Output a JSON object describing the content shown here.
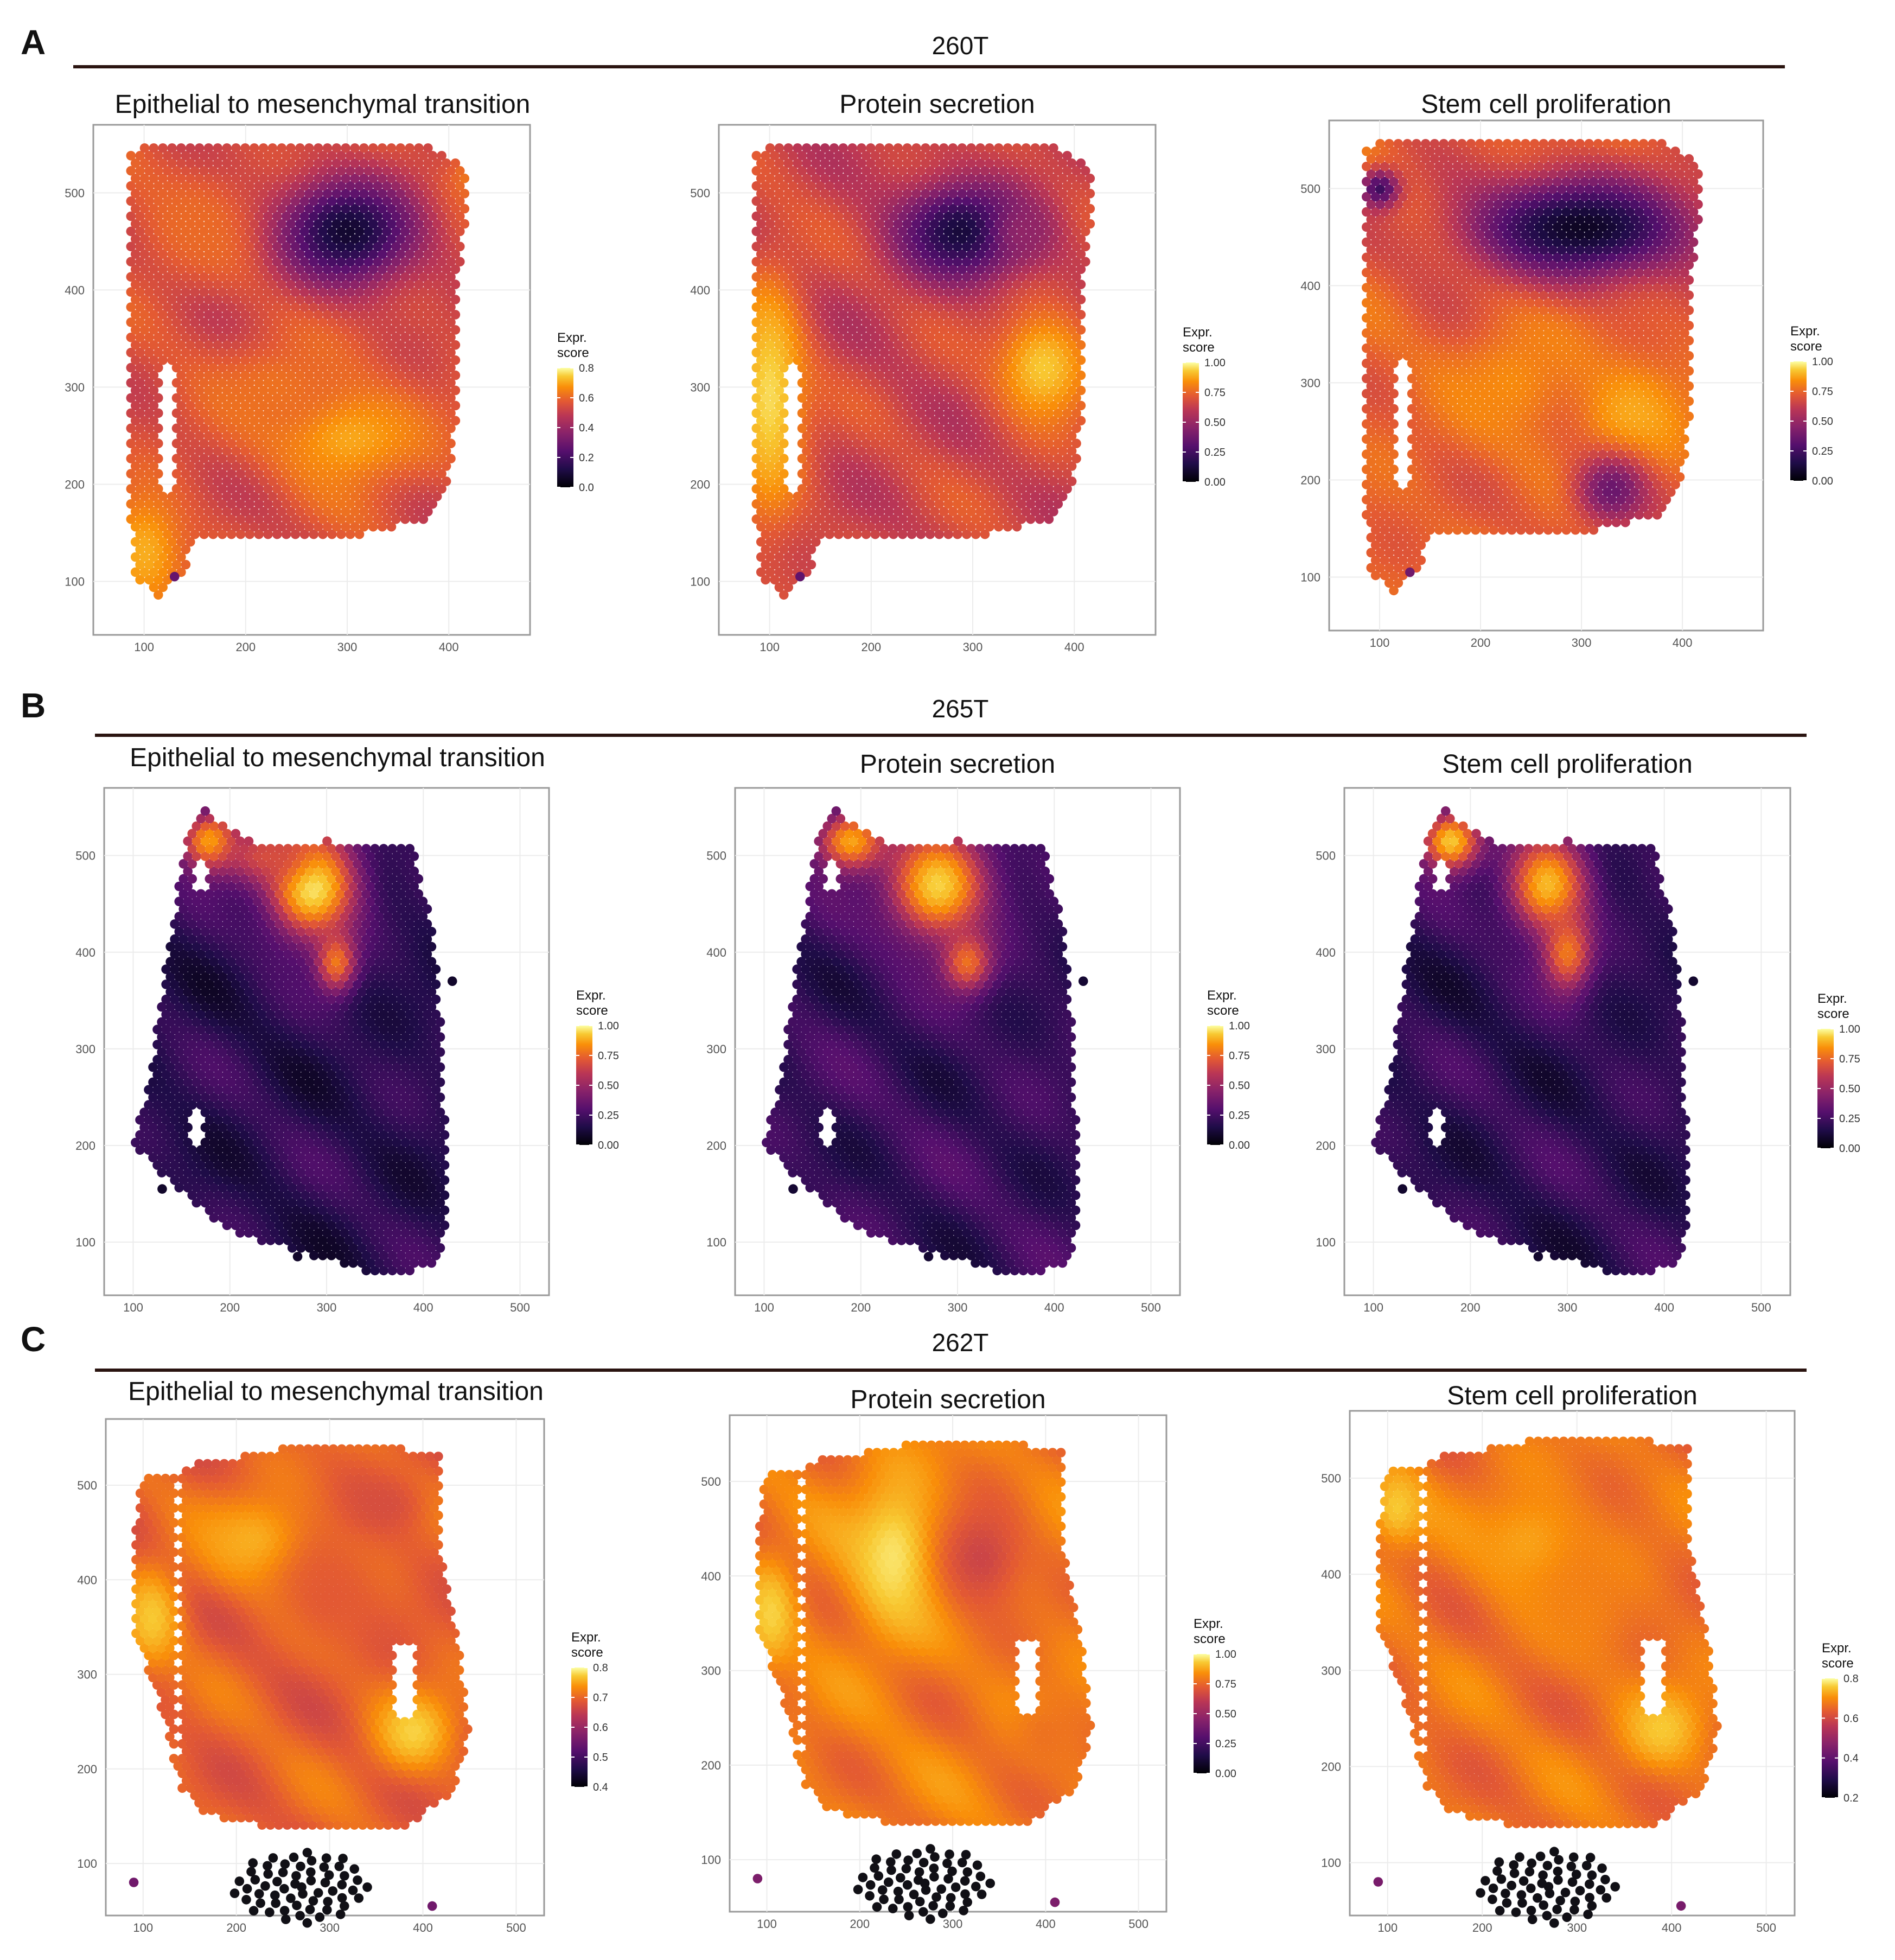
{
  "figure": {
    "rows": [
      {
        "panel_letter": "A",
        "sample": "260T",
        "plots": [
          {
            "title": "Epithelial to mesenchymal transition",
            "legend_title": [
              "Expr.",
              "score"
            ],
            "legend_ticks": [
              "0.0",
              "0.2",
              "0.4",
              "0.6",
              "0.8"
            ],
            "scale_max": 0.8
          },
          {
            "title": "Protein secretion",
            "legend_title": [
              "Expr.",
              "score"
            ],
            "legend_ticks": [
              "0.00",
              "0.25",
              "0.50",
              "0.75",
              "1.00"
            ],
            "scale_max": 1.0
          },
          {
            "title": "Stem cell proliferation",
            "legend_title": [
              "Expr.",
              "score"
            ],
            "legend_ticks": [
              "0.00",
              "0.25",
              "0.50",
              "0.75",
              "1.00"
            ],
            "scale_max": 1.0
          }
        ]
      },
      {
        "panel_letter": "B",
        "sample": "265T",
        "plots": [
          {
            "title": "Epithelial to mesenchymal transition",
            "legend_title": [
              "Expr.",
              "score"
            ],
            "legend_ticks": [
              "0.00",
              "0.25",
              "0.50",
              "0.75",
              "1.00"
            ],
            "scale_max": 1.0
          },
          {
            "title": "Protein secretion",
            "legend_title": [
              "Expr.",
              "score"
            ],
            "legend_ticks": [
              "0.00",
              "0.25",
              "0.50",
              "0.75",
              "1.00"
            ],
            "scale_max": 1.0
          },
          {
            "title": "Stem cell proliferation",
            "legend_title": [
              "Expr.",
              "score"
            ],
            "legend_ticks": [
              "0.00",
              "0.25",
              "0.50",
              "0.75",
              "1.00"
            ],
            "scale_max": 1.0
          }
        ]
      },
      {
        "panel_letter": "C",
        "sample": "262T",
        "plots": [
          {
            "title": "Epithelial to mesenchymal transition",
            "legend_title": [
              "Expr.",
              "score"
            ],
            "legend_ticks": [
              "0.4",
              "0.5",
              "0.6",
              "0.7",
              "0.8"
            ],
            "scale_max": 0.8
          },
          {
            "title": "Protein secretion",
            "legend_title": [
              "Expr.",
              "score"
            ],
            "legend_ticks": [
              "0.00",
              "0.25",
              "0.50",
              "0.75",
              "1.00"
            ],
            "scale_max": 1.0
          },
          {
            "title": "Stem cell proliferation",
            "legend_title": [
              "Expr.",
              "score"
            ],
            "legend_ticks": [
              "0.2",
              "0.4",
              "0.6",
              "0.8"
            ],
            "scale_max": 0.8
          }
        ]
      }
    ]
  },
  "chart_data": [
    {
      "type": "scatter",
      "sample": "260T",
      "xlim": [
        50,
        480
      ],
      "ylim": [
        45,
        570
      ],
      "x_ticks": [
        100,
        200,
        300,
        400
      ],
      "y_ticks": [
        100,
        200,
        300,
        400,
        500
      ],
      "color_scale": "inferno",
      "legend_title": "Expr. score",
      "panels": [
        "Epithelial to mesenchymal transition",
        "Protein secretion",
        "Stem cell proliferation"
      ],
      "tissue_outline": [
        [
          85,
          545
        ],
        [
          120,
          550
        ],
        [
          380,
          548
        ],
        [
          415,
          530
        ],
        [
          420,
          480
        ],
        [
          410,
          420
        ],
        [
          410,
          300
        ],
        [
          400,
          200
        ],
        [
          380,
          165
        ],
        [
          300,
          145
        ],
        [
          150,
          145
        ],
        [
          140,
          110
        ],
        [
          110,
          80
        ],
        [
          90,
          110
        ],
        [
          85,
          200
        ],
        [
          85,
          545
        ]
      ],
      "gaps": [
        {
          "center": [
            125,
            260
          ],
          "size": [
            14,
            130
          ]
        }
      ],
      "isolated_spots": [
        [
          130,
          105
        ]
      ],
      "hotspots": [
        [
          [
            300,
            460,
            70,
            55,
            0.08
          ],
          [
            300,
            250,
            70,
            50,
            0.82
          ],
          [
            230,
            300,
            70,
            50,
            0.68
          ],
          [
            430,
            520,
            30,
            30,
            0.72
          ],
          [
            100,
            130,
            40,
            60,
            0.82
          ],
          [
            150,
            470,
            60,
            60,
            0.66
          ]
        ],
        [
          [
            290,
            460,
            65,
            50,
            0.1
          ],
          [
            100,
            290,
            35,
            120,
            0.92
          ],
          [
            370,
            320,
            45,
            55,
            0.88
          ],
          [
            350,
            460,
            30,
            30,
            0.4
          ]
        ],
        [
          [
            300,
            460,
            120,
            55,
            0.06
          ],
          [
            350,
            260,
            50,
            60,
            0.82
          ],
          [
            330,
            190,
            40,
            40,
            0.3
          ],
          [
            100,
            500,
            20,
            20,
            0.2
          ],
          [
            230,
            300,
            60,
            60,
            0.74
          ]
        ]
      ],
      "base_values": [
        0.58,
        0.55,
        0.64
      ]
    },
    {
      "type": "scatter",
      "sample": "265T",
      "xlim": [
        70,
        530
      ],
      "ylim": [
        45,
        570
      ],
      "x_ticks": [
        100,
        200,
        300,
        400,
        500
      ],
      "y_ticks": [
        100,
        200,
        300,
        400,
        500
      ],
      "color_scale": "inferno",
      "legend_title": "Expr. score",
      "panels": [
        "Epithelial to mesenchymal transition",
        "Protein secretion",
        "Stem cell proliferation"
      ],
      "tissue_outline": [
        [
          170,
          550
        ],
        [
          230,
          510
        ],
        [
          300,
          515
        ],
        [
          390,
          510
        ],
        [
          410,
          420
        ],
        [
          420,
          300
        ],
        [
          425,
          120
        ],
        [
          415,
          75
        ],
        [
          360,
          65
        ],
        [
          200,
          110
        ],
        [
          140,
          160
        ],
        [
          100,
          200
        ],
        [
          120,
          280
        ],
        [
          125,
          330
        ],
        [
          140,
          420
        ],
        [
          150,
          500
        ],
        [
          170,
          550
        ]
      ],
      "gaps": [
        {
          "center": [
            170,
            480
          ],
          "size": [
            12,
            25
          ]
        },
        {
          "center": [
            165,
            220
          ],
          "size": [
            12,
            40
          ]
        }
      ],
      "isolated_spots": [
        [
          130,
          155
        ],
        [
          270,
          85
        ],
        [
          430,
          370
        ]
      ],
      "hotspots": [
        [
          [
            285,
            470,
            45,
            55,
            0.98
          ],
          [
            180,
            515,
            30,
            30,
            0.82
          ],
          [
            310,
            390,
            20,
            30,
            0.7
          ],
          [
            240,
            500,
            50,
            30,
            0.58
          ]
        ],
        [
          [
            280,
            470,
            50,
            55,
            0.9
          ],
          [
            190,
            515,
            35,
            30,
            0.8
          ],
          [
            310,
            390,
            25,
            30,
            0.68
          ]
        ],
        [
          [
            280,
            470,
            40,
            50,
            0.85
          ],
          [
            180,
            515,
            30,
            30,
            0.88
          ],
          [
            300,
            400,
            25,
            40,
            0.7
          ]
        ]
      ],
      "base_values": [
        0.15,
        0.18,
        0.16
      ]
    },
    {
      "type": "scatter",
      "sample": "262T",
      "xlim": [
        60,
        530
      ],
      "ylim": [
        45,
        570
      ],
      "x_ticks": [
        100,
        200,
        300,
        400,
        500
      ],
      "y_ticks": [
        100,
        200,
        300,
        400,
        500
      ],
      "color_scale": "inferno",
      "legend_title": "Expr. score",
      "panels": [
        "Epithelial to mesenchymal transition",
        "Protein secretion",
        "Stem cell proliferation"
      ],
      "tissue_outline": [
        [
          100,
          510
        ],
        [
          130,
          515
        ],
        [
          140,
          520
        ],
        [
          290,
          545
        ],
        [
          420,
          535
        ],
        [
          420,
          420
        ],
        [
          440,
          320
        ],
        [
          450,
          240
        ],
        [
          430,
          170
        ],
        [
          380,
          140
        ],
        [
          230,
          140
        ],
        [
          170,
          150
        ],
        [
          140,
          180
        ],
        [
          120,
          260
        ],
        [
          90,
          350
        ],
        [
          90,
          450
        ],
        [
          100,
          510
        ]
      ],
      "gaps": [
        {
          "center": [
            138,
            360
          ],
          "size": [
            8,
            310
          ]
        },
        {
          "center": [
            380,
            290
          ],
          "size": [
            20,
            80
          ]
        }
      ],
      "isolated_spots": [
        [
          90,
          80
        ],
        [
          410,
          55
        ]
      ],
      "dark_cluster": {
        "center": [
          270,
          85
        ],
        "size": [
          70,
          30
        ]
      },
      "hotspots": [
        [
          [
            110,
            360,
            30,
            50,
            0.88
          ],
          [
            390,
            240,
            40,
            40,
            0.9
          ],
          [
            220,
            440,
            60,
            50,
            0.83
          ],
          [
            300,
            380,
            60,
            60,
            0.62
          ],
          [
            360,
            480,
            40,
            30,
            0.58
          ]
        ],
        [
          [
            240,
            420,
            50,
            80,
            0.95
          ],
          [
            105,
            360,
            25,
            50,
            0.9
          ],
          [
            330,
            420,
            50,
            60,
            0.55
          ],
          [
            400,
            230,
            40,
            40,
            0.68
          ]
        ],
        [
          [
            110,
            470,
            30,
            40,
            0.88
          ],
          [
            390,
            240,
            40,
            40,
            0.88
          ],
          [
            250,
            430,
            60,
            60,
            0.8
          ],
          [
            300,
            360,
            60,
            60,
            0.72
          ]
        ]
      ],
      "base_values": [
        0.64,
        0.7,
        0.68
      ]
    }
  ]
}
